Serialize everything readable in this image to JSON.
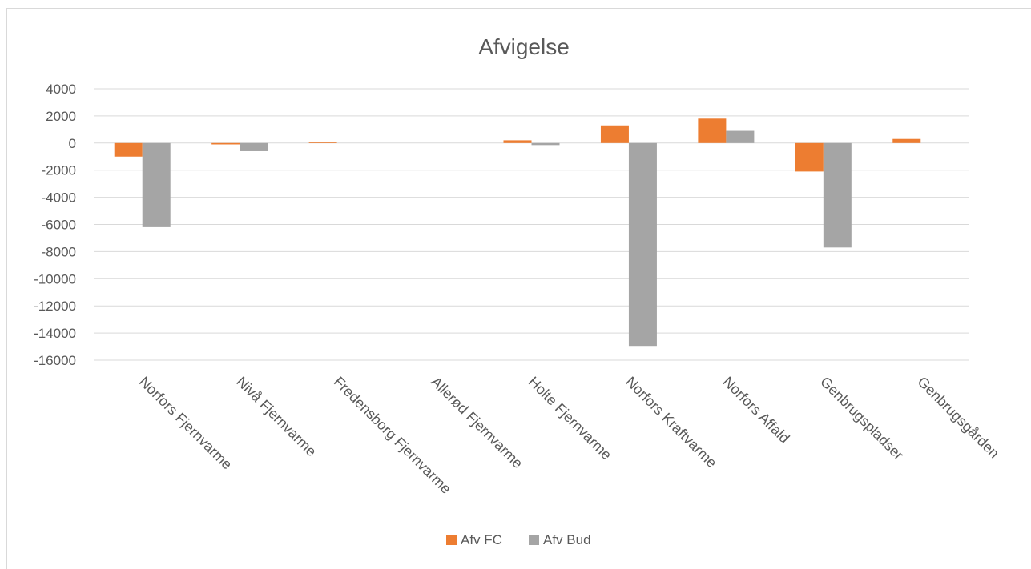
{
  "chart_data": {
    "type": "bar",
    "title": "Afvigelse",
    "xlabel": "",
    "ylabel": "",
    "ylim": [
      -16000,
      4000
    ],
    "yticks": [
      4000,
      2000,
      0,
      -2000,
      -4000,
      -6000,
      -8000,
      -10000,
      -12000,
      -14000,
      -16000
    ],
    "ytick_labels": [
      "4000",
      "2000",
      "0",
      "-2000",
      "-4000",
      "-6000",
      "-8000",
      "-10000",
      "-12000",
      "-14000",
      "-16000"
    ],
    "categories": [
      "Norfors Fjernvarme",
      "Nivå  Fjernvarme",
      "Fredensborg Fjernvarme",
      "Allerød Fjernvarme",
      "Holte Fjernvarme",
      "Norfors Kraftvarme",
      "Norfors Affald",
      "Genbrugspladser",
      "Genbrugsgården"
    ],
    "series": [
      {
        "name": "Afv FC",
        "color": "#ed7d31",
        "values": [
          -1000,
          -100,
          100,
          0,
          200,
          1300,
          1800,
          -2100,
          300
        ]
      },
      {
        "name": "Afv Bud",
        "color": "#a5a5a5",
        "values": [
          -6200,
          -600,
          0,
          0,
          -150,
          -14950,
          900,
          -7700,
          0
        ]
      }
    ],
    "grid": true,
    "legend": "bottom"
  }
}
